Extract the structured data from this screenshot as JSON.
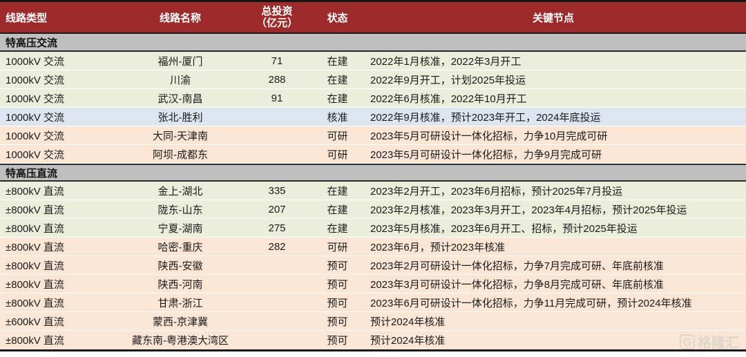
{
  "colors": {
    "header_bg": "#9E2B2B",
    "header_text": "#FFFFFF",
    "section_bg": "#BFBFBF",
    "row_under_construction": "#EBEEDB",
    "row_approved": "#DCE5F0",
    "row_feasibility": "#FBE6D5",
    "border_dark": "#1A1A1A"
  },
  "table": {
    "headers": {
      "type": "线路类型",
      "name": "线路名称",
      "invest_line1": "总投资",
      "invest_line2": "（亿元）",
      "status": "状态",
      "key": "关键节点"
    },
    "sections": {
      "ac": "特高压交流",
      "dc": "特高压直流"
    },
    "rows": [
      {
        "type": "1000kV 交流",
        "name": "福州-厦门",
        "invest": "71",
        "status": "在建",
        "key": "2022年1月核准，2022年3月开工"
      },
      {
        "type": "1000kV 交流",
        "name": "川渝",
        "invest": "288",
        "status": "在建",
        "key": "2022年9月开工，计划2025年投运"
      },
      {
        "type": "1000kV 交流",
        "name": "武汉-南昌",
        "invest": "91",
        "status": "在建",
        "key": "2022年6月核准，2022年10月开工"
      },
      {
        "type": "1000kV 交流",
        "name": "张北-胜利",
        "invest": "",
        "status": "核准",
        "key": "2022年9月核准，预计2023年开工，2024年底投运"
      },
      {
        "type": "1000kV 交流",
        "name": "大同-天津南",
        "invest": "",
        "status": "可研",
        "key": "2023年5月可研设计一体化招标，力争10月完成可研"
      },
      {
        "type": "1000kV 交流",
        "name": "阿坝-成都东",
        "invest": "",
        "status": "可研",
        "key": "2023年5月可研设计一体化招标，力争9月完成可研"
      },
      {
        "type": "±800kV 直流",
        "name": "金上-湖北",
        "invest": "335",
        "status": "在建",
        "key": "2023年2月开工，2023年6月招标，预计2025年7月投运"
      },
      {
        "type": "±800kV 直流",
        "name": "陇东-山东",
        "invest": "207",
        "status": "在建",
        "key": "2023年2月核准，2023年3月开工，2023年4月招标，预计2025年投运"
      },
      {
        "type": "±800kV 直流",
        "name": "宁夏-湖南",
        "invest": "275",
        "status": "在建",
        "key": "2023年5月核准，2023年6月开工、招标，预计2025年投运"
      },
      {
        "type": "±800kV 直流",
        "name": "哈密-重庆",
        "invest": "282",
        "status": "可研",
        "key": "2023年6月，预计2023年核准"
      },
      {
        "type": "±800kV 直流",
        "name": "陕西-安徽",
        "invest": "",
        "status": "预可",
        "key": "2023年2月可研设计一体化招标，力争7月完成可研、年底前核准"
      },
      {
        "type": "±800kV 直流",
        "name": "陕西-河南",
        "invest": "",
        "status": "预可",
        "key": "2023年3月可研设计一体化招标，力争8月完成可研、年底前核准"
      },
      {
        "type": "±800kV 直流",
        "name": "甘肃-浙江",
        "invest": "",
        "status": "预可",
        "key": "2023年6月可研设计一体化招标，力争11月完成可研，预计2024年核准"
      },
      {
        "type": "±600kV 直流",
        "name": "蒙西-京津冀",
        "invest": "",
        "status": "预可",
        "key": "预计2024年核准"
      },
      {
        "type": "±800kV 直流",
        "name": "藏东南-粤港澳大湾区",
        "invest": "",
        "status": "预可",
        "key": "预计2024年核准"
      }
    ]
  },
  "watermark": {
    "logo": "G",
    "text": "格隆汇"
  },
  "chart_data": {
    "type": "table",
    "title": "特高压线路规划进展",
    "columns": [
      "线路类型",
      "线路名称",
      "总投资（亿元）",
      "状态",
      "关键节点"
    ],
    "sections": [
      {
        "title": "特高压交流",
        "rows": [
          [
            "1000kV 交流",
            "福州-厦门",
            71,
            "在建",
            "2022年1月核准，2022年3月开工"
          ],
          [
            "1000kV 交流",
            "川渝",
            288,
            "在建",
            "2022年9月开工，计划2025年投运"
          ],
          [
            "1000kV 交流",
            "武汉-南昌",
            91,
            "在建",
            "2022年6月核准，2022年10月开工"
          ],
          [
            "1000kV 交流",
            "张北-胜利",
            null,
            "核准",
            "2022年9月核准，预计2023年开工，2024年底投运"
          ],
          [
            "1000kV 交流",
            "大同-天津南",
            null,
            "可研",
            "2023年5月可研设计一体化招标，力争10月完成可研"
          ],
          [
            "1000kV 交流",
            "阿坝-成都东",
            null,
            "可研",
            "2023年5月可研设计一体化招标，力争9月完成可研"
          ]
        ]
      },
      {
        "title": "特高压直流",
        "rows": [
          [
            "±800kV 直流",
            "金上-湖北",
            335,
            "在建",
            "2023年2月开工，2023年6月招标，预计2025年7月投运"
          ],
          [
            "±800kV 直流",
            "陇东-山东",
            207,
            "在建",
            "2023年2月核准，2023年3月开工，2023年4月招标，预计2025年投运"
          ],
          [
            "±800kV 直流",
            "宁夏-湖南",
            275,
            "在建",
            "2023年5月核准，2023年6月开工、招标，预计2025年投运"
          ],
          [
            "±800kV 直流",
            "哈密-重庆",
            282,
            "可研",
            "2023年6月，预计2023年核准"
          ],
          [
            "±800kV 直流",
            "陕西-安徽",
            null,
            "预可",
            "2023年2月可研设计一体化招标，力争7月完成可研、年底前核准"
          ],
          [
            "±800kV 直流",
            "陕西-河南",
            null,
            "预可",
            "2023年3月可研设计一体化招标，力争8月完成可研、年底前核准"
          ],
          [
            "±800kV 直流",
            "甘肃-浙江",
            null,
            "预可",
            "2023年6月可研设计一体化招标，力争11月完成可研，预计2024年核准"
          ],
          [
            "±600kV 直流",
            "蒙西-京津冀",
            null,
            "预可",
            "预计2024年核准"
          ],
          [
            "±800kV 直流",
            "藏东南-粤港澳大湾区",
            null,
            "预可",
            "预计2024年核准"
          ]
        ]
      }
    ]
  }
}
